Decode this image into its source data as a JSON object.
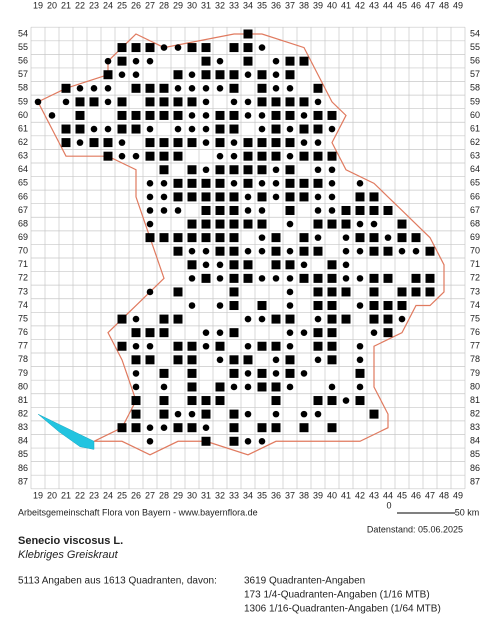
{
  "map": {
    "columns": [
      19,
      20,
      21,
      22,
      23,
      24,
      25,
      26,
      27,
      28,
      29,
      30,
      31,
      32,
      33,
      34,
      35,
      36,
      37,
      38,
      39,
      40,
      41,
      42,
      43,
      44,
      45,
      46,
      47,
      48,
      49
    ],
    "rows": [
      54,
      55,
      56,
      57,
      58,
      59,
      60,
      61,
      62,
      63,
      64,
      65,
      66,
      67,
      68,
      69,
      70,
      71,
      72,
      73,
      74,
      75,
      76,
      77,
      78,
      79,
      80,
      81,
      82,
      83,
      84,
      85,
      86,
      87
    ],
    "credit": "Arbeitsgemeinschaft Flora von Bayern - www.bayernflora.de",
    "scale_start": "0",
    "scale_end": "50 km",
    "date": "Datenstand: 05.06.2025"
  },
  "species": {
    "name": "Senecio viscosus L.",
    "common_name": "Klebriges Greiskraut"
  },
  "summary": {
    "total": "5113 Angaben aus 1613 Quadranten, davon:",
    "lines": [
      "3619 Quadranten-Angaben",
      "173 1/4-Quadranten-Angaben (1/16 MTB)",
      "1306 1/16-Quadranten-Angaben (1/64 MTB)"
    ]
  }
}
